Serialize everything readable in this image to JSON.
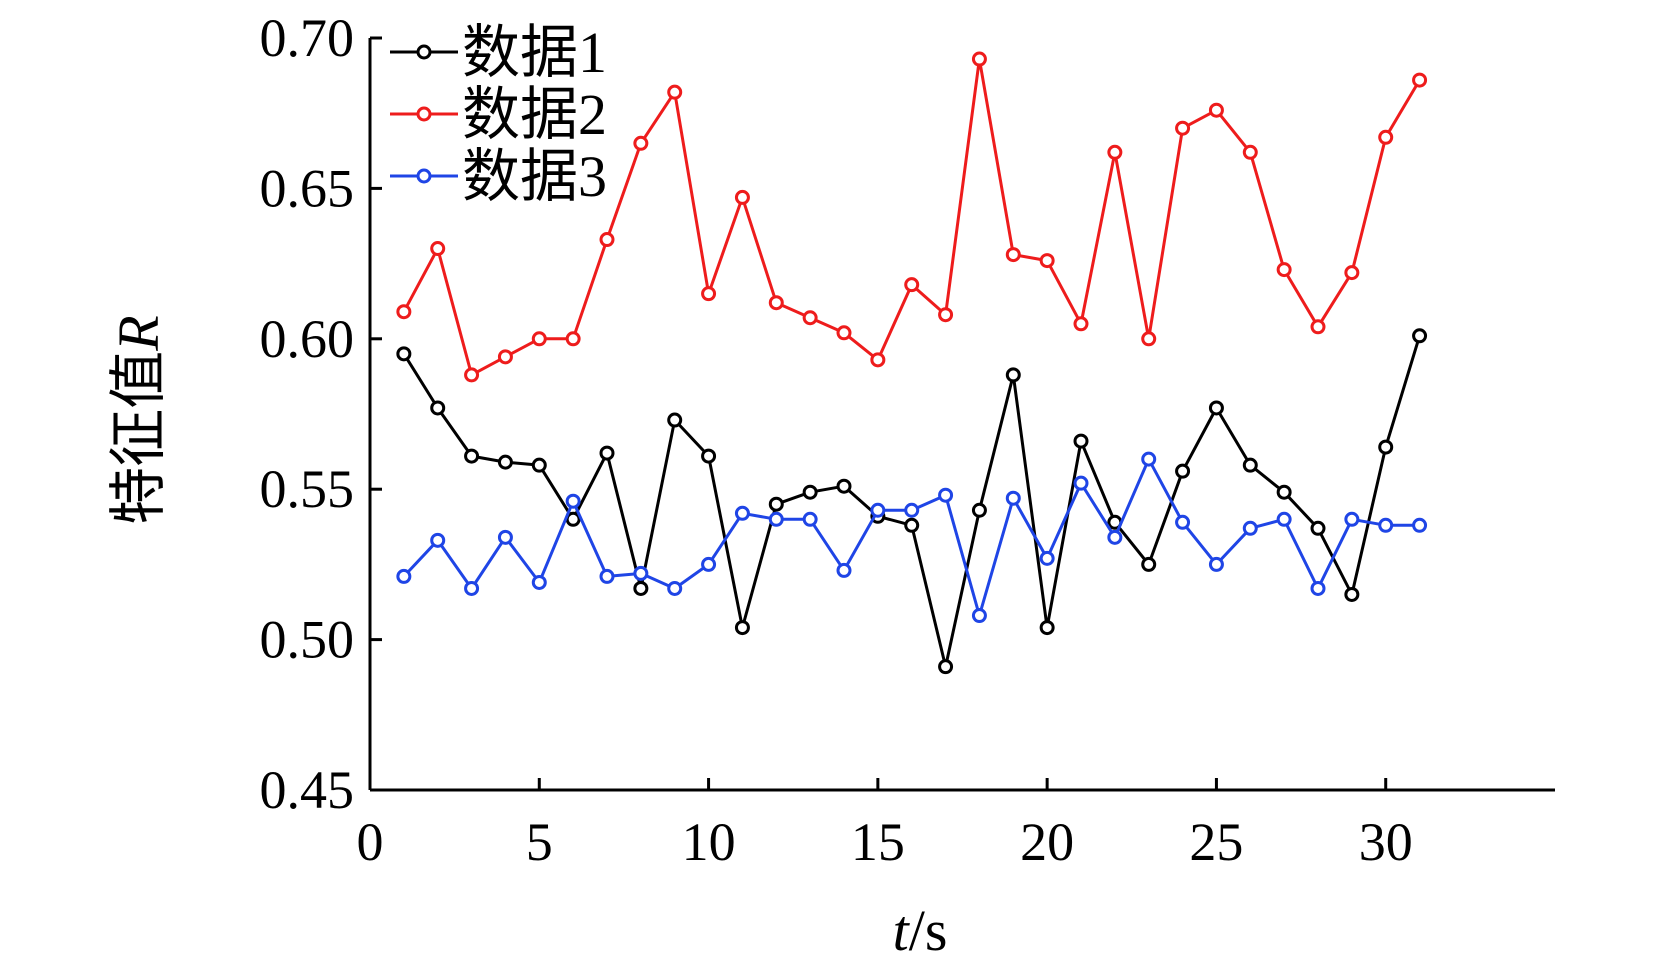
{
  "chart_data": {
    "type": "line",
    "xlabel_italic": "t",
    "xlabel_rest": "/s",
    "ylabel_text": "特征值",
    "ylabel_italic": "R",
    "xlim": [
      0,
      35
    ],
    "ylim": [
      0.45,
      0.7
    ],
    "xticks": [
      0,
      5,
      10,
      15,
      20,
      25,
      30
    ],
    "xtick_labels": [
      "0",
      "5",
      "10",
      "15",
      "20",
      "25",
      "30"
    ],
    "yticks": [
      0.45,
      0.5,
      0.55,
      0.6,
      0.65,
      0.7
    ],
    "ytick_labels": [
      "0.45",
      "0.50",
      "0.55",
      "0.60",
      "0.65",
      "0.70"
    ],
    "grid": false,
    "legend_position": "top-left",
    "marker": "open-circle",
    "x": [
      1,
      2,
      3,
      4,
      5,
      6,
      7,
      8,
      9,
      10,
      11,
      12,
      13,
      14,
      15,
      16,
      17,
      18,
      19,
      20,
      21,
      22,
      23,
      24,
      25,
      26,
      27,
      28,
      29,
      30,
      31
    ],
    "series": [
      {
        "name": "数据1",
        "color": "#000000",
        "values": [
          0.595,
          0.577,
          0.561,
          0.559,
          0.558,
          0.54,
          0.562,
          0.517,
          0.573,
          0.561,
          0.504,
          0.545,
          0.549,
          0.551,
          0.541,
          0.538,
          0.491,
          0.543,
          0.588,
          0.504,
          0.566,
          0.539,
          0.525,
          0.556,
          0.577,
          0.558,
          0.549,
          0.537,
          0.515,
          0.564,
          0.601
        ]
      },
      {
        "name": "数据2",
        "color": "#ee1c1c",
        "values": [
          0.609,
          0.63,
          0.588,
          0.594,
          0.6,
          0.6,
          0.633,
          0.665,
          0.682,
          0.615,
          0.647,
          0.612,
          0.607,
          0.602,
          0.593,
          0.618,
          0.608,
          0.693,
          0.628,
          0.626,
          0.605,
          0.662,
          0.6,
          0.67,
          0.676,
          0.662,
          0.623,
          0.604,
          0.622,
          0.667,
          0.686
        ]
      },
      {
        "name": "数据3",
        "color": "#1f45e6",
        "values": [
          0.521,
          0.533,
          0.517,
          0.534,
          0.519,
          0.546,
          0.521,
          0.522,
          0.517,
          0.525,
          0.542,
          0.54,
          0.54,
          0.523,
          0.543,
          0.543,
          0.548,
          0.508,
          0.547,
          0.527,
          0.552,
          0.534,
          0.56,
          0.539,
          0.525,
          0.537,
          0.54,
          0.517,
          0.54,
          0.538,
          0.538
        ]
      }
    ]
  }
}
